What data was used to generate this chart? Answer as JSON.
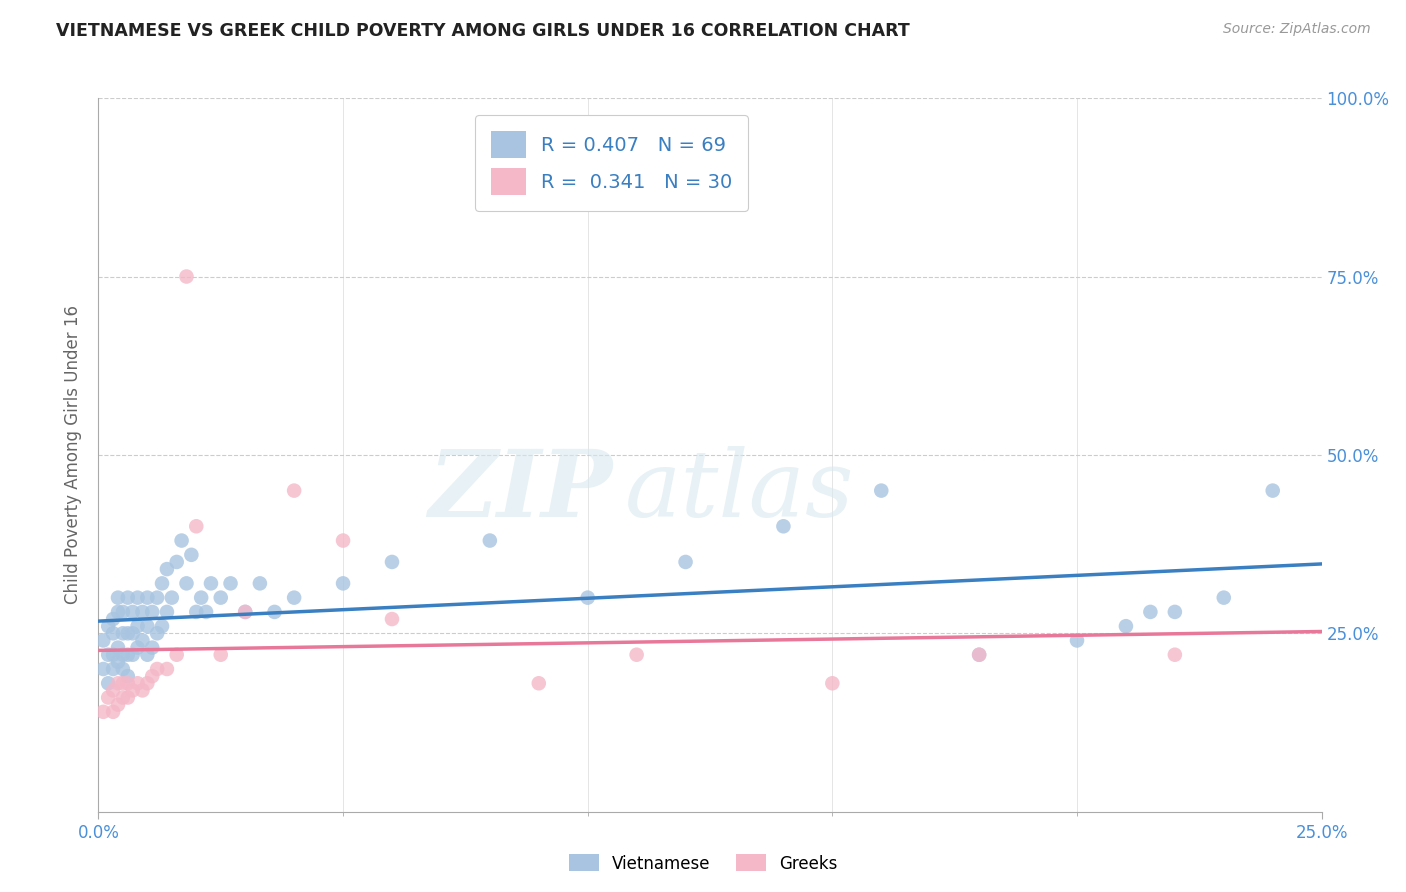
{
  "title": "VIETNAMESE VS GREEK CHILD POVERTY AMONG GIRLS UNDER 16 CORRELATION CHART",
  "source": "Source: ZipAtlas.com",
  "ylabel": "Child Poverty Among Girls Under 16",
  "xlim": [
    0.0,
    0.25
  ],
  "ylim": [
    0.0,
    1.0
  ],
  "viet_color": "#a8c4e0",
  "greek_color": "#f4b8c8",
  "viet_line_color": "#3a7fc1",
  "greek_line_color": "#e8789a",
  "legend_text_color": "#3a7fc1",
  "axis_tick_color": "#4a90d9",
  "title_color": "#222222",
  "grid_color": "#cccccc",
  "background_color": "#ffffff",
  "viet_R": 0.407,
  "greek_R": 0.341,
  "viet_N": 69,
  "greek_N": 30,
  "watermark_part1": "ZIP",
  "watermark_part2": "atlas",
  "bottom_legend": [
    "Vietnamese",
    "Greeks"
  ],
  "viet_x": [
    0.001,
    0.001,
    0.002,
    0.002,
    0.002,
    0.003,
    0.003,
    0.003,
    0.003,
    0.004,
    0.004,
    0.004,
    0.004,
    0.005,
    0.005,
    0.005,
    0.005,
    0.006,
    0.006,
    0.006,
    0.006,
    0.007,
    0.007,
    0.007,
    0.008,
    0.008,
    0.008,
    0.009,
    0.009,
    0.01,
    0.01,
    0.01,
    0.011,
    0.011,
    0.012,
    0.012,
    0.013,
    0.013,
    0.014,
    0.014,
    0.015,
    0.016,
    0.017,
    0.018,
    0.019,
    0.02,
    0.021,
    0.022,
    0.023,
    0.025,
    0.027,
    0.03,
    0.033,
    0.036,
    0.04,
    0.05,
    0.06,
    0.08,
    0.1,
    0.12,
    0.14,
    0.16,
    0.18,
    0.2,
    0.21,
    0.215,
    0.22,
    0.23,
    0.24
  ],
  "viet_y": [
    0.2,
    0.24,
    0.18,
    0.22,
    0.26,
    0.2,
    0.22,
    0.25,
    0.27,
    0.21,
    0.23,
    0.28,
    0.3,
    0.2,
    0.22,
    0.25,
    0.28,
    0.19,
    0.22,
    0.25,
    0.3,
    0.22,
    0.25,
    0.28,
    0.23,
    0.26,
    0.3,
    0.24,
    0.28,
    0.22,
    0.26,
    0.3,
    0.23,
    0.28,
    0.25,
    0.3,
    0.26,
    0.32,
    0.28,
    0.34,
    0.3,
    0.35,
    0.38,
    0.32,
    0.36,
    0.28,
    0.3,
    0.28,
    0.32,
    0.3,
    0.32,
    0.28,
    0.32,
    0.28,
    0.3,
    0.32,
    0.35,
    0.38,
    0.3,
    0.35,
    0.4,
    0.45,
    0.22,
    0.24,
    0.26,
    0.28,
    0.28,
    0.3,
    0.45
  ],
  "greek_x": [
    0.001,
    0.002,
    0.003,
    0.003,
    0.004,
    0.004,
    0.005,
    0.005,
    0.006,
    0.006,
    0.007,
    0.008,
    0.009,
    0.01,
    0.011,
    0.012,
    0.014,
    0.016,
    0.018,
    0.02,
    0.025,
    0.03,
    0.04,
    0.05,
    0.06,
    0.09,
    0.11,
    0.15,
    0.18,
    0.22
  ],
  "greek_y": [
    0.14,
    0.16,
    0.14,
    0.17,
    0.15,
    0.18,
    0.16,
    0.18,
    0.16,
    0.18,
    0.17,
    0.18,
    0.17,
    0.18,
    0.19,
    0.2,
    0.2,
    0.22,
    0.75,
    0.4,
    0.22,
    0.28,
    0.45,
    0.38,
    0.27,
    0.18,
    0.22,
    0.18,
    0.22,
    0.22
  ]
}
